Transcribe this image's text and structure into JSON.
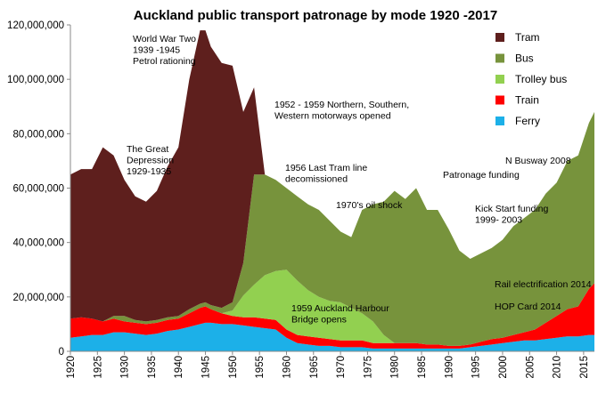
{
  "chart_data": {
    "type": "stacked_area",
    "title": "Auckland public transport patronage by mode 1920 -2017",
    "x": [
      1920,
      1922,
      1924,
      1926,
      1928,
      1930,
      1932,
      1934,
      1936,
      1938,
      1940,
      1942,
      1944,
      1945,
      1946,
      1948,
      1950,
      1952,
      1954,
      1956,
      1958,
      1960,
      1962,
      1964,
      1966,
      1968,
      1970,
      1972,
      1974,
      1976,
      1978,
      1980,
      1982,
      1984,
      1986,
      1988,
      1990,
      1992,
      1994,
      1996,
      1998,
      2000,
      2002,
      2004,
      2006,
      2008,
      2010,
      2012,
      2014,
      2016,
      2017
    ],
    "series": [
      {
        "name": "Tram",
        "color": "#5e1f1d",
        "values": [
          53000000,
          54500000,
          55000000,
          64000000,
          59000000,
          50000000,
          45500000,
          44000000,
          47500000,
          55500000,
          62000000,
          84500000,
          100500000,
          100000000,
          95000000,
          90000000,
          87000000,
          55500000,
          32000000,
          0,
          0,
          0,
          0,
          0,
          0,
          0,
          0,
          0,
          0,
          0,
          0,
          0,
          0,
          0,
          0,
          0,
          0,
          0,
          0,
          0,
          0,
          0,
          0,
          0,
          0,
          0,
          0,
          0,
          0,
          0,
          0
        ]
      },
      {
        "name": "Bus",
        "color": "#77933c",
        "values": [
          0,
          0,
          0,
          0,
          1000000,
          2000000,
          1000000,
          1000000,
          1000000,
          1000000,
          1000000,
          1500000,
          1500000,
          1500000,
          1500000,
          2000000,
          3000000,
          12000000,
          40500000,
          37000000,
          33500000,
          30000000,
          31000000,
          31500000,
          32000000,
          29500000,
          26000000,
          26000000,
          38000000,
          43000000,
          49000000,
          56000000,
          53000000,
          57000000,
          49500000,
          49500000,
          43000000,
          35000000,
          31500000,
          32500000,
          33500000,
          36000000,
          40000000,
          42000000,
          44000000,
          47500000,
          49000000,
          54500000,
          55500000,
          61000000,
          63000000
        ]
      },
      {
        "name": "Trolley bus",
        "color": "#92d050",
        "values": [
          0,
          0,
          0,
          0,
          0,
          0,
          0,
          0,
          0,
          0,
          0,
          0,
          0,
          0,
          0,
          0,
          2000000,
          8000000,
          12000000,
          16000000,
          18000000,
          22000000,
          20000000,
          17000000,
          15000000,
          14000000,
          14000000,
          12000000,
          10000000,
          8000000,
          3000000,
          0,
          0,
          0,
          0,
          0,
          0,
          0,
          0,
          0,
          0,
          0,
          0,
          0,
          0,
          0,
          0,
          0,
          0,
          0,
          0
        ]
      },
      {
        "name": "Train",
        "color": "#ff0000",
        "values": [
          7000000,
          7000000,
          6000000,
          5000000,
          5000000,
          4000000,
          4000000,
          4000000,
          4000000,
          4000000,
          4000000,
          5000000,
          6000000,
          6000000,
          5000000,
          4000000,
          3000000,
          3000000,
          3500000,
          3500000,
          3500000,
          3000000,
          3000000,
          3000000,
          3000000,
          2500000,
          2500000,
          2500000,
          2500000,
          2000000,
          2000000,
          2000000,
          2000000,
          2000000,
          1500000,
          1500000,
          1000000,
          1000000,
          1000000,
          1500000,
          2000000,
          2000000,
          2500000,
          3000000,
          4000000,
          6000000,
          8000000,
          10000000,
          11000000,
          17000000,
          19000000
        ]
      },
      {
        "name": "Ferry",
        "color": "#1cb0e8",
        "values": [
          5000000,
          5500000,
          6000000,
          6000000,
          7000000,
          7000000,
          6500000,
          6000000,
          6500000,
          7500000,
          8000000,
          9000000,
          10000000,
          10500000,
          10500000,
          10000000,
          10000000,
          9500000,
          9000000,
          8500000,
          8000000,
          5000000,
          3000000,
          2500000,
          2000000,
          2000000,
          1500000,
          1500000,
          1500000,
          1000000,
          1000000,
          1000000,
          1000000,
          1000000,
          1000000,
          1000000,
          1000000,
          1000000,
          1500000,
          2000000,
          2500000,
          3000000,
          3500000,
          4000000,
          4000000,
          4500000,
          5000000,
          5500000,
          5500000,
          6000000,
          6000000
        ]
      }
    ],
    "xlim": [
      1920,
      2017
    ],
    "xticks": [
      1920,
      1925,
      1930,
      1935,
      1940,
      1945,
      1950,
      1955,
      1960,
      1965,
      1970,
      1975,
      1980,
      1985,
      1990,
      1995,
      2000,
      2005,
      2010,
      2015
    ],
    "ylim": [
      0,
      120000000
    ],
    "yticks": [
      {
        "value": 0,
        "label": "0"
      },
      {
        "value": 20000000,
        "label": "20,000,000"
      },
      {
        "value": 40000000,
        "label": "40,000,000"
      },
      {
        "value": 60000000,
        "label": "60,000,000"
      },
      {
        "value": 80000000,
        "label": "80,000,000"
      },
      {
        "value": 100000000,
        "label": "100,000,000"
      },
      {
        "value": 120000000,
        "label": "120,000,000"
      }
    ],
    "legend": "top-right",
    "annotations": [
      [
        "World War Two",
        "1939 -1945",
        "Petrol rationing"
      ],
      [
        "The Great",
        "Depression",
        "1929-1935"
      ],
      [
        "1952 - 1959 Northern, Southern,",
        "Western motorways opened"
      ],
      [
        "1956 Last Tram line",
        "decomissioned"
      ],
      [
        "1970's oil shock"
      ],
      [
        "Patronage funding"
      ],
      [
        "N Busway 2008"
      ],
      [
        "Kick Start funding",
        "1999- 2003"
      ],
      [
        "1959 Auckland Harbour",
        "Bridge opens"
      ],
      [
        "Rail electrification 2014"
      ],
      [
        "HOP Card 2014"
      ]
    ]
  }
}
